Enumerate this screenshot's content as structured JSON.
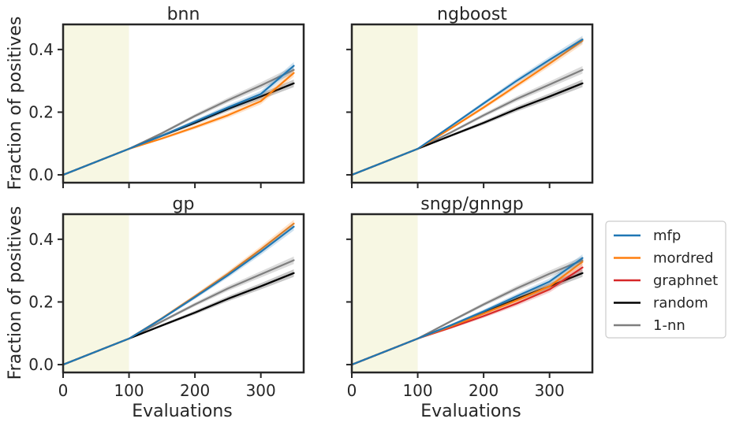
{
  "figure": {
    "ylabel": "Fraction of positives",
    "xlabel": "Evaluations"
  },
  "legend": {
    "placement": "right",
    "entries": [
      {
        "name": "mfp",
        "color": "#1f77b4"
      },
      {
        "name": "mordred",
        "color": "#ff7f0e"
      },
      {
        "name": "graphnet",
        "color": "#d62728"
      },
      {
        "name": "random",
        "color": "#000000"
      },
      {
        "name": "1-nn",
        "color": "#7f7f7f"
      }
    ]
  },
  "colors": {
    "warmup_shade": "#f7f7e3",
    "axis": "#262626",
    "band_gray": "#bfbfbf"
  },
  "chart_data": [
    {
      "type": "line",
      "title": "bnn",
      "xlim": [
        0,
        365
      ],
      "ylim": [
        -0.025,
        0.48
      ],
      "xticks": [
        0,
        100,
        200,
        300
      ],
      "yticks": [
        0.0,
        0.2,
        0.4
      ],
      "warmup_region": [
        0,
        100
      ],
      "series": [
        {
          "name": "mfp",
          "x": [
            0,
            100,
            150,
            200,
            250,
            300,
            350
          ],
          "y": [
            0,
            0.083,
            0.125,
            0.17,
            0.215,
            0.258,
            0.348
          ]
        },
        {
          "name": "mordred",
          "x": [
            0,
            100,
            150,
            200,
            250,
            300,
            350
          ],
          "y": [
            0,
            0.083,
            0.116,
            0.152,
            0.19,
            0.235,
            0.325
          ]
        },
        {
          "name": "random",
          "x": [
            0,
            100,
            150,
            200,
            250,
            300,
            350
          ],
          "y": [
            0,
            0.083,
            0.125,
            0.166,
            0.21,
            0.25,
            0.292
          ]
        },
        {
          "name": "1-nn",
          "x": [
            0,
            100,
            150,
            200,
            250,
            300,
            350
          ],
          "y": [
            0,
            0.083,
            0.133,
            0.188,
            0.238,
            0.285,
            0.335
          ]
        }
      ]
    },
    {
      "type": "line",
      "title": "ngboost",
      "xlim": [
        0,
        365
      ],
      "ylim": [
        -0.025,
        0.48
      ],
      "xticks": [
        0,
        100,
        200,
        300
      ],
      "yticks": [
        0.0,
        0.2,
        0.4
      ],
      "warmup_region": [
        0,
        100
      ],
      "series": [
        {
          "name": "mfp",
          "x": [
            0,
            100,
            150,
            200,
            250,
            300,
            350
          ],
          "y": [
            0,
            0.083,
            0.155,
            0.228,
            0.3,
            0.367,
            0.432
          ]
        },
        {
          "name": "mordred",
          "x": [
            0,
            100,
            150,
            200,
            250,
            300,
            350
          ],
          "y": [
            0,
            0.083,
            0.148,
            0.215,
            0.285,
            0.355,
            0.428
          ]
        },
        {
          "name": "random",
          "x": [
            0,
            100,
            150,
            200,
            250,
            300,
            350
          ],
          "y": [
            0,
            0.083,
            0.125,
            0.166,
            0.21,
            0.25,
            0.292
          ]
        },
        {
          "name": "1-nn",
          "x": [
            0,
            100,
            150,
            200,
            250,
            300,
            350
          ],
          "y": [
            0,
            0.083,
            0.135,
            0.19,
            0.242,
            0.288,
            0.335
          ]
        }
      ]
    },
    {
      "type": "line",
      "title": "gp",
      "xlim": [
        0,
        365
      ],
      "ylim": [
        -0.025,
        0.48
      ],
      "xticks": [
        0,
        100,
        200,
        300
      ],
      "yticks": [
        0.0,
        0.2,
        0.4
      ],
      "warmup_region": [
        0,
        100
      ],
      "series": [
        {
          "name": "mfp",
          "x": [
            0,
            100,
            150,
            200,
            250,
            300,
            350
          ],
          "y": [
            0,
            0.083,
            0.147,
            0.215,
            0.285,
            0.36,
            0.44
          ]
        },
        {
          "name": "mordred",
          "x": [
            0,
            100,
            150,
            200,
            250,
            300,
            350
          ],
          "y": [
            0,
            0.083,
            0.148,
            0.218,
            0.29,
            0.368,
            0.45
          ]
        },
        {
          "name": "random",
          "x": [
            0,
            100,
            150,
            200,
            250,
            300,
            350
          ],
          "y": [
            0,
            0.083,
            0.125,
            0.166,
            0.21,
            0.25,
            0.292
          ]
        },
        {
          "name": "1-nn",
          "x": [
            0,
            100,
            150,
            200,
            250,
            300,
            350
          ],
          "y": [
            0,
            0.083,
            0.138,
            0.192,
            0.243,
            0.288,
            0.333
          ]
        }
      ]
    },
    {
      "type": "line",
      "title": "sngp/gnngp",
      "xlim": [
        0,
        365
      ],
      "ylim": [
        -0.025,
        0.48
      ],
      "xticks": [
        0,
        100,
        200,
        300
      ],
      "yticks": [
        0.0,
        0.2,
        0.4
      ],
      "warmup_region": [
        0,
        100
      ],
      "series": [
        {
          "name": "mfp",
          "x": [
            0,
            100,
            150,
            200,
            250,
            300,
            350
          ],
          "y": [
            0,
            0.083,
            0.125,
            0.17,
            0.218,
            0.265,
            0.34
          ]
        },
        {
          "name": "mordred",
          "x": [
            0,
            100,
            150,
            200,
            250,
            300,
            350
          ],
          "y": [
            0,
            0.083,
            0.122,
            0.163,
            0.205,
            0.25,
            0.328
          ]
        },
        {
          "name": "graphnet",
          "x": [
            0,
            100,
            150,
            200,
            250,
            300,
            350
          ],
          "y": [
            0,
            0.083,
            0.118,
            0.155,
            0.195,
            0.24,
            0.31
          ]
        },
        {
          "name": "random",
          "x": [
            0,
            100,
            150,
            200,
            250,
            300,
            350
          ],
          "y": [
            0,
            0.083,
            0.125,
            0.166,
            0.21,
            0.25,
            0.292
          ]
        },
        {
          "name": "1-nn",
          "x": [
            0,
            100,
            150,
            200,
            250,
            300,
            350
          ],
          "y": [
            0,
            0.083,
            0.138,
            0.192,
            0.243,
            0.29,
            0.333
          ]
        }
      ]
    }
  ]
}
